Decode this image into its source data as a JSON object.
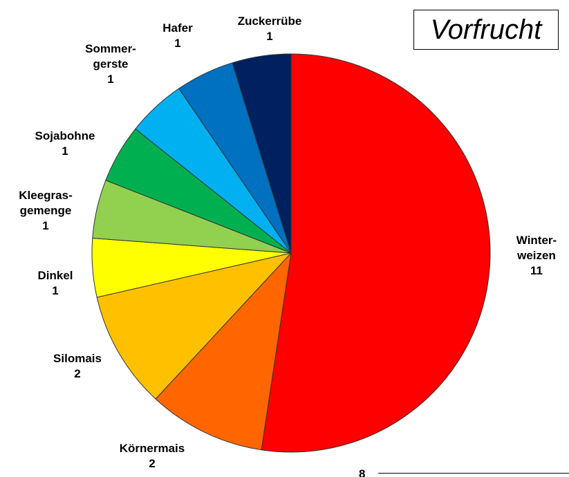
{
  "chart_data": {
    "type": "pie",
    "title": "Vorfrucht",
    "categories": [
      "Winter-\nweizen",
      "Körnermais",
      "Silomais",
      "Dinkel",
      "Kleegras-\ngemenge",
      "Sojabohne",
      "Sommer-\ngerste",
      "Hafer",
      "Zuckerrübe"
    ],
    "values": [
      11,
      2,
      2,
      1,
      1,
      1,
      1,
      1,
      1
    ],
    "colors": [
      "#ff0000",
      "#ff6600",
      "#ffc000",
      "#ffff00",
      "#92d050",
      "#00b050",
      "#00b0f0",
      "#0070c0",
      "#002060"
    ]
  },
  "footer": {
    "page": "8"
  }
}
